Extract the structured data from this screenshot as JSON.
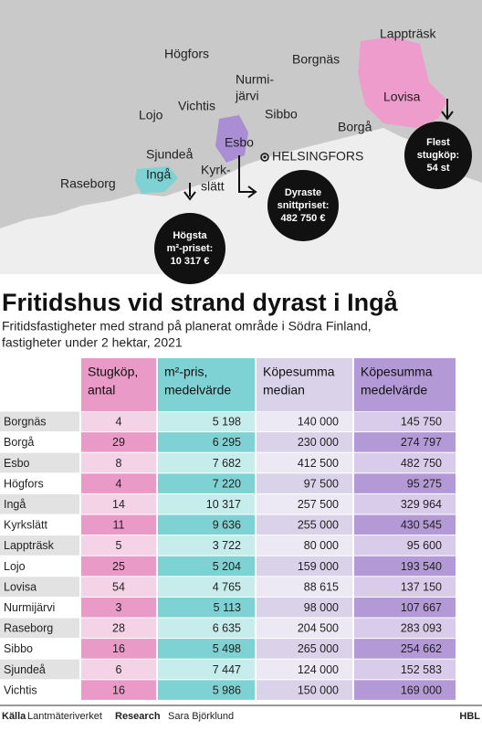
{
  "map": {
    "labels": [
      "Lappträsk",
      "Högfors",
      "Borgnäs",
      "Nurmi-",
      "järvi",
      "Lovisa",
      "Lojo",
      "Vichtis",
      "Sibbo",
      "Borgå",
      "Esbo",
      "Sjundeå",
      "Ingå",
      "Kyrk-",
      "slätt",
      "Raseborg"
    ],
    "city": "HELSINGFORS",
    "callouts": [
      [
        "Flest",
        "stugköp:",
        "54 st"
      ],
      [
        "Dyraste",
        "snittpriset:",
        "482 750 €"
      ],
      [
        "Högsta",
        "m²-priset:",
        "10 317 €"
      ]
    ]
  },
  "header": {
    "title": "Fritidshus vid strand dyrast i Ingå",
    "subtitle": [
      "Fritidsfastigheter med strand på planerat område i Södra Finland,",
      "fastigheter under 2 hektar, 2021"
    ]
  },
  "table": {
    "columns": [
      [
        "Stugköp,",
        "antal"
      ],
      [
        "m²-pris,",
        "medelvärde"
      ],
      [
        "Köpesumma",
        "median"
      ],
      [
        "Köpesumma",
        "medelvärde"
      ]
    ],
    "rows": [
      [
        "Borgnäs",
        "4",
        "5 198",
        "140 000",
        "145 750"
      ],
      [
        "Borgå",
        "29",
        "6 295",
        "230 000",
        "274 797"
      ],
      [
        "Esbo",
        "8",
        "7 682",
        "412 500",
        "482 750"
      ],
      [
        "Högfors",
        "4",
        "7 220",
        "97 500",
        "95 275"
      ],
      [
        "Ingå",
        "14",
        "10 317",
        "257 500",
        "329 964"
      ],
      [
        "Kyrkslätt",
        "11",
        "9 636",
        "255 000",
        "430 545"
      ],
      [
        "Lappträsk",
        "5",
        "3 722",
        "80 000",
        "95 600"
      ],
      [
        "Lojo",
        "25",
        "5 204",
        "159 000",
        "193 540"
      ],
      [
        "Lovisa",
        "54",
        "4 765",
        "88 615",
        "137 150"
      ],
      [
        "Nurmijärvi",
        "3",
        "5 113",
        "98 000",
        "107 667"
      ],
      [
        "Raseborg",
        "28",
        "6 635",
        "204 500",
        "283 093"
      ],
      [
        "Sibbo",
        "16",
        "5 498",
        "265 000",
        "254 662"
      ],
      [
        "Sjundeå",
        "6",
        "7 447",
        "124 000",
        "152 583"
      ],
      [
        "Vichtis",
        "16",
        "5 986",
        "150 000",
        "169 000"
      ]
    ]
  },
  "footer": {
    "source_label": "Källa",
    "source": "Lantmäteriverket",
    "research_label": "Research",
    "research": "Sara Björklund",
    "brand": "HBL"
  }
}
